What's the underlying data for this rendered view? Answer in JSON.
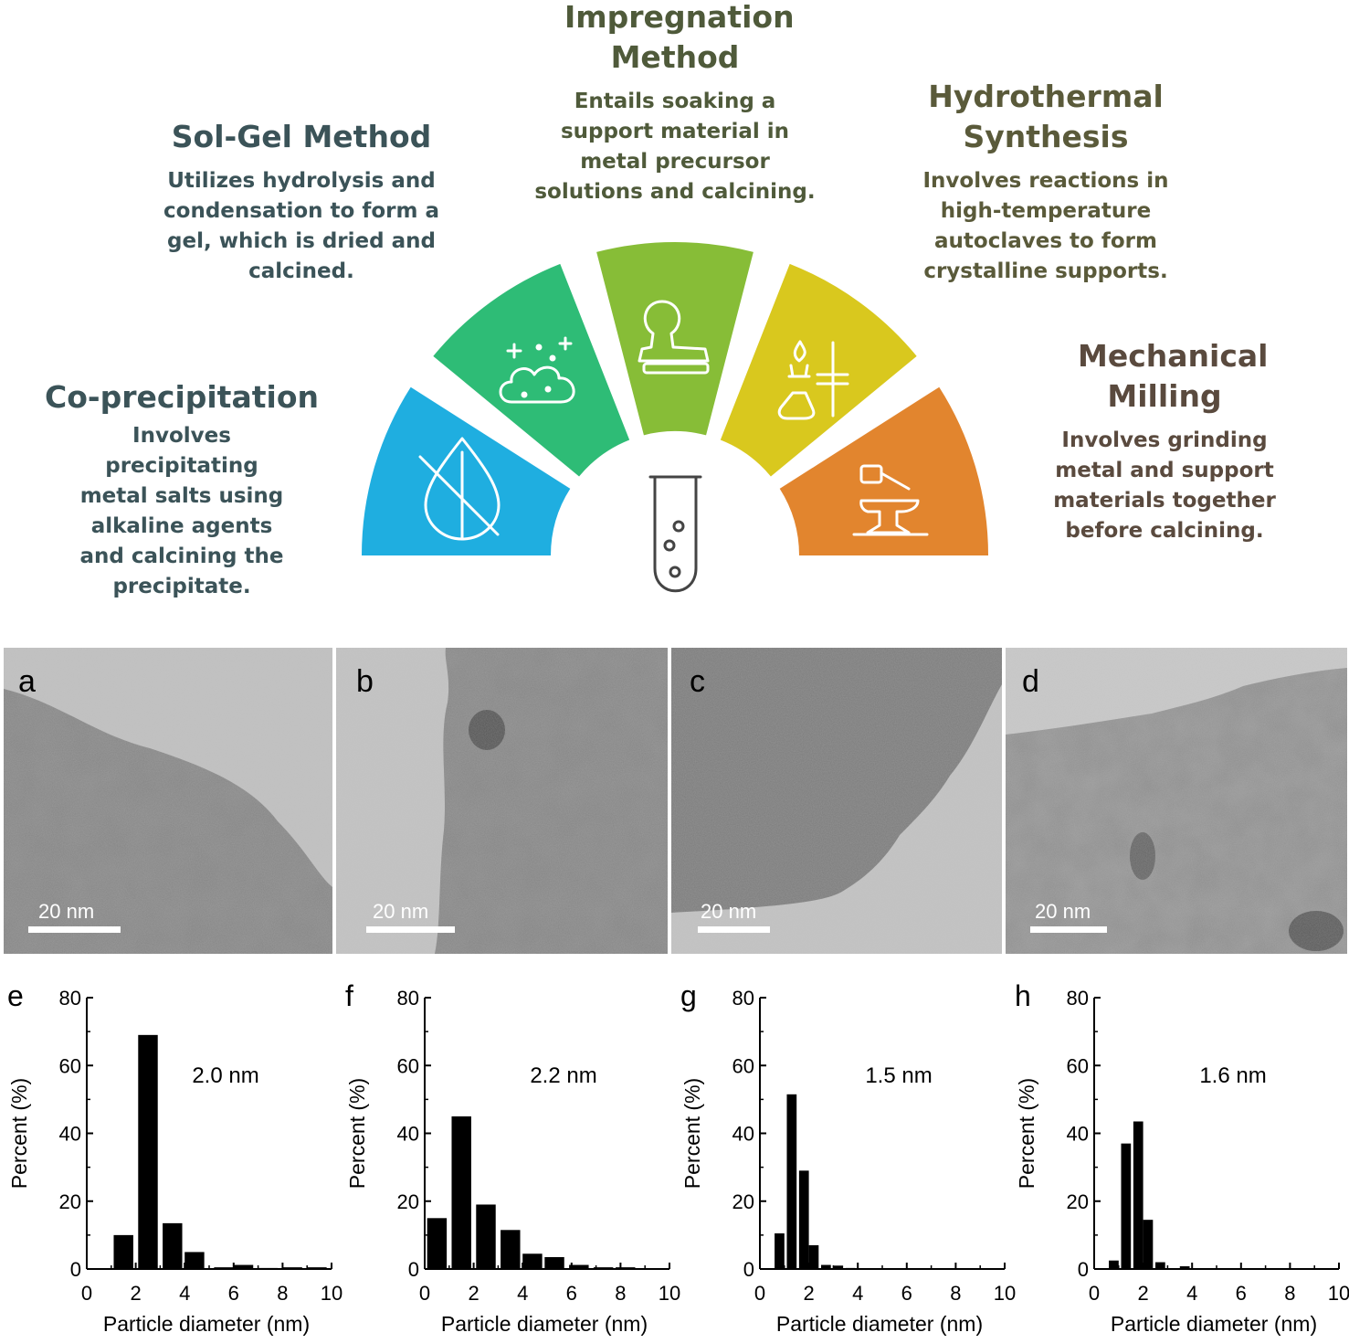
{
  "methods": [
    {
      "key": "coprecip",
      "title": "Co-precipitation",
      "desc": "Involves precipitating metal salts using alkaline agents and calcining the precipitate.",
      "color": "#3b5358",
      "icon": "leaf-drop-slash-icon"
    },
    {
      "key": "solgel",
      "title": "Sol-Gel Method",
      "desc": "Utilizes hydrolysis and condensation to form a gel, which is dried and calcined.",
      "color": "#3b5358",
      "icon": "cloud-sparkle-icon"
    },
    {
      "key": "impreg",
      "title": "Impregnation Method",
      "desc": "Entails soaking a support material in metal precursor solutions and calcining.",
      "color": "#4f5a3a",
      "icon": "stamp-icon"
    },
    {
      "key": "hydro",
      "title": "Hydrothermal Synthesis",
      "desc": "Involves reactions in high-temperature autoclaves to form crystalline supports.",
      "color": "#5a5a3a",
      "icon": "flask-burner-icon"
    },
    {
      "key": "milling",
      "title": "Mechanical Milling",
      "desc": "Involves grinding metal and support materials together before calcining.",
      "color": "#5a4a3e",
      "icon": "hammer-anvil-icon"
    }
  ],
  "segment_colors": [
    "#1faee0",
    "#2ebc76",
    "#87bd37",
    "#d9c81e",
    "#e2852e"
  ],
  "center_icon": "test-tube-icon",
  "tem_panels": [
    {
      "letter": "a",
      "scale": "20 nm"
    },
    {
      "letter": "b",
      "scale": "20 nm"
    },
    {
      "letter": "c",
      "scale": "20 nm"
    },
    {
      "letter": "d",
      "scale": "20 nm"
    }
  ],
  "chart_data": [
    {
      "panel": "e",
      "type": "bar",
      "annotation": "2.0 nm",
      "xlabel": "Particle diameter (nm)",
      "ylabel": "Percent (%)",
      "xlim": [
        0,
        10
      ],
      "ylim": [
        0,
        80
      ],
      "xticks": [
        0,
        2,
        4,
        6,
        8,
        10
      ],
      "yticks": [
        0,
        20,
        40,
        60,
        80
      ],
      "bin_width": 0.8,
      "bins": [
        [
          1.1,
          10
        ],
        [
          2.1,
          69
        ],
        [
          3.1,
          13.5
        ],
        [
          4.0,
          5
        ],
        [
          5.2,
          0.5
        ],
        [
          6.0,
          1.2
        ],
        [
          7.0,
          0.3
        ],
        [
          8.0,
          0.5
        ],
        [
          9.0,
          0.5
        ]
      ]
    },
    {
      "panel": "f",
      "type": "bar",
      "annotation": "2.2 nm",
      "xlabel": "Particle diameter (nm)",
      "ylabel": "Percent (%)",
      "xlim": [
        0,
        10
      ],
      "ylim": [
        0,
        80
      ],
      "xticks": [
        0,
        2,
        4,
        6,
        8,
        10
      ],
      "yticks": [
        0,
        20,
        40,
        60,
        80
      ],
      "bin_width": 0.8,
      "bins": [
        [
          0.1,
          15
        ],
        [
          1.1,
          45
        ],
        [
          2.1,
          19
        ],
        [
          3.1,
          11.5
        ],
        [
          4.0,
          4.5
        ],
        [
          4.9,
          3.5
        ],
        [
          5.9,
          1.2
        ],
        [
          6.9,
          0.5
        ],
        [
          7.8,
          0.5
        ]
      ]
    },
    {
      "panel": "g",
      "type": "bar",
      "annotation": "1.5 nm",
      "xlabel": "Particle diameter (nm)",
      "ylabel": "Percent (%)",
      "xlim": [
        0,
        10
      ],
      "ylim": [
        0,
        80
      ],
      "xticks": [
        0,
        2,
        4,
        6,
        8,
        10
      ],
      "yticks": [
        0,
        20,
        40,
        60,
        80
      ],
      "bin_width": 0.4,
      "bins": [
        [
          0.6,
          10.5
        ],
        [
          1.1,
          51.5
        ],
        [
          1.6,
          29
        ],
        [
          2.0,
          7
        ],
        [
          2.5,
          1.2
        ],
        [
          3.0,
          1
        ],
        [
          3.5,
          0.3
        ]
      ]
    },
    {
      "panel": "h",
      "type": "bar",
      "annotation": "1.6 nm",
      "xlabel": "Particle diameter (nm)",
      "ylabel": "Percent (%)",
      "xlim": [
        0,
        10
      ],
      "ylim": [
        0,
        80
      ],
      "xticks": [
        0,
        2,
        4,
        6,
        8,
        10
      ],
      "yticks": [
        0,
        20,
        40,
        60,
        80
      ],
      "bin_width": 0.4,
      "bins": [
        [
          0.6,
          2.5
        ],
        [
          1.1,
          37
        ],
        [
          1.6,
          43.5
        ],
        [
          2.0,
          14.5
        ],
        [
          2.5,
          2
        ],
        [
          3.5,
          0.8
        ]
      ]
    }
  ]
}
